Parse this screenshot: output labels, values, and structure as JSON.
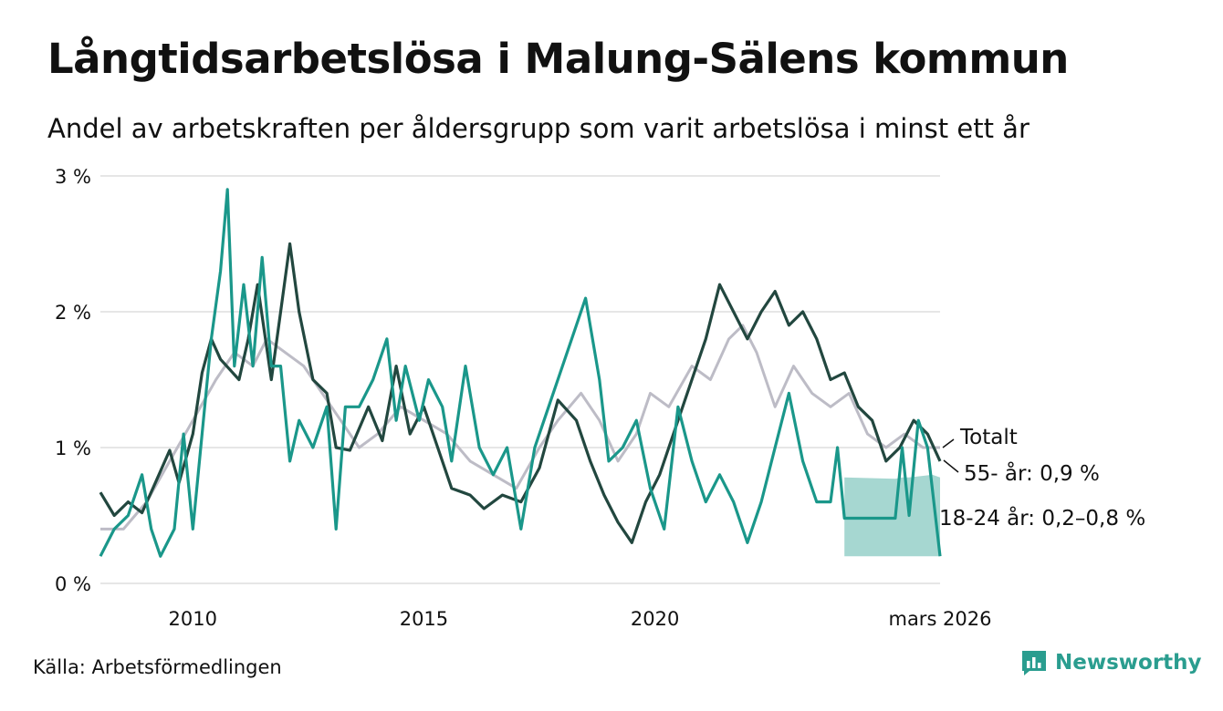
{
  "title": "Långtidsarbetslösa i Malung-Sälens kommun",
  "subtitle": "Andel av arbetskraften per åldersgrupp som varit arbetslösa i minst ett år",
  "source": "Källa: Arbetsförmedlingen",
  "brand": {
    "name": "Newsworthy",
    "logo_icon": "chart-bubble-icon"
  },
  "colors": {
    "total": "#bdbcc6",
    "age55": "#22473f",
    "age1824": "#1a978a",
    "band": "#a6d7d1",
    "grid": "#dddddd"
  },
  "chart_data": {
    "type": "line",
    "title": "Långtidsarbetslösa i Malung-Sälens kommun",
    "xlabel": "",
    "ylabel": "",
    "x_range": [
      2008.0,
      2026.17
    ],
    "ylim": [
      0,
      3
    ],
    "y_ticks": [
      0,
      1,
      2,
      3
    ],
    "y_tick_labels": [
      "0 %",
      "1 %",
      "2 %",
      "3 %"
    ],
    "x_ticks": [
      2010,
      2015,
      2020,
      2026.17
    ],
    "x_tick_labels": [
      "2010",
      "2015",
      "2020",
      "mars 2026"
    ],
    "grid": true,
    "series": [
      {
        "name": "Totalt",
        "label": "Totalt",
        "color": "#bdbcc6",
        "points": [
          [
            2008.0,
            0.4
          ],
          [
            2008.5,
            0.4
          ],
          [
            2009.0,
            0.6
          ],
          [
            2009.5,
            0.9
          ],
          [
            2010.0,
            1.2
          ],
          [
            2010.5,
            1.5
          ],
          [
            2010.9,
            1.7
          ],
          [
            2011.3,
            1.6
          ],
          [
            2011.6,
            1.8
          ],
          [
            2012.0,
            1.7
          ],
          [
            2012.4,
            1.6
          ],
          [
            2012.8,
            1.4
          ],
          [
            2013.2,
            1.2
          ],
          [
            2013.6,
            1.0
          ],
          [
            2014.0,
            1.1
          ],
          [
            2014.5,
            1.3
          ],
          [
            2015.0,
            1.2
          ],
          [
            2015.5,
            1.1
          ],
          [
            2016.0,
            0.9
          ],
          [
            2016.5,
            0.8
          ],
          [
            2017.0,
            0.7
          ],
          [
            2017.5,
            1.0
          ],
          [
            2017.9,
            1.2
          ],
          [
            2018.4,
            1.4
          ],
          [
            2018.8,
            1.2
          ],
          [
            2019.2,
            0.9
          ],
          [
            2019.6,
            1.1
          ],
          [
            2019.9,
            1.4
          ],
          [
            2020.3,
            1.3
          ],
          [
            2020.8,
            1.6
          ],
          [
            2021.2,
            1.5
          ],
          [
            2021.6,
            1.8
          ],
          [
            2021.9,
            1.9
          ],
          [
            2022.2,
            1.7
          ],
          [
            2022.6,
            1.3
          ],
          [
            2023.0,
            1.6
          ],
          [
            2023.4,
            1.4
          ],
          [
            2023.8,
            1.3
          ],
          [
            2024.2,
            1.4
          ],
          [
            2024.6,
            1.1
          ],
          [
            2025.0,
            1.0
          ],
          [
            2025.4,
            1.1
          ],
          [
            2025.8,
            1.0
          ],
          [
            2026.17,
            1.0
          ]
        ]
      },
      {
        "name": "55- år",
        "label": "55- år: 0,9 %",
        "color": "#22473f",
        "points": [
          [
            2008.0,
            0.67
          ],
          [
            2008.3,
            0.5
          ],
          [
            2008.6,
            0.6
          ],
          [
            2008.9,
            0.52
          ],
          [
            2009.2,
            0.75
          ],
          [
            2009.5,
            0.98
          ],
          [
            2009.7,
            0.74
          ],
          [
            2010.0,
            1.1
          ],
          [
            2010.2,
            1.55
          ],
          [
            2010.4,
            1.8
          ],
          [
            2010.6,
            1.65
          ],
          [
            2011.0,
            1.5
          ],
          [
            2011.2,
            1.8
          ],
          [
            2011.4,
            2.2
          ],
          [
            2011.7,
            1.5
          ],
          [
            2011.9,
            2.0
          ],
          [
            2012.1,
            2.5
          ],
          [
            2012.3,
            2.0
          ],
          [
            2012.6,
            1.5
          ],
          [
            2012.9,
            1.4
          ],
          [
            2013.1,
            1.0
          ],
          [
            2013.4,
            0.98
          ],
          [
            2013.8,
            1.3
          ],
          [
            2014.1,
            1.05
          ],
          [
            2014.4,
            1.6
          ],
          [
            2014.7,
            1.1
          ],
          [
            2015.0,
            1.3
          ],
          [
            2015.3,
            1.0
          ],
          [
            2015.6,
            0.7
          ],
          [
            2016.0,
            0.65
          ],
          [
            2016.3,
            0.55
          ],
          [
            2016.7,
            0.65
          ],
          [
            2017.1,
            0.6
          ],
          [
            2017.5,
            0.85
          ],
          [
            2017.9,
            1.35
          ],
          [
            2018.3,
            1.2
          ],
          [
            2018.6,
            0.9
          ],
          [
            2018.9,
            0.65
          ],
          [
            2019.2,
            0.45
          ],
          [
            2019.5,
            0.3
          ],
          [
            2019.8,
            0.6
          ],
          [
            2020.1,
            0.8
          ],
          [
            2020.5,
            1.2
          ],
          [
            2020.8,
            1.5
          ],
          [
            2021.1,
            1.8
          ],
          [
            2021.4,
            2.2
          ],
          [
            2021.7,
            2.0
          ],
          [
            2022.0,
            1.8
          ],
          [
            2022.3,
            2.0
          ],
          [
            2022.6,
            2.15
          ],
          [
            2022.9,
            1.9
          ],
          [
            2023.2,
            2.0
          ],
          [
            2023.5,
            1.8
          ],
          [
            2023.8,
            1.5
          ],
          [
            2024.1,
            1.55
          ],
          [
            2024.4,
            1.3
          ],
          [
            2024.7,
            1.2
          ],
          [
            2025.0,
            0.9
          ],
          [
            2025.3,
            1.0
          ],
          [
            2025.6,
            1.2
          ],
          [
            2025.9,
            1.1
          ],
          [
            2026.17,
            0.9
          ]
        ]
      },
      {
        "name": "18-24 år",
        "label": "18-24 år: 0,2–0,8 %",
        "color": "#1a978a",
        "points": [
          [
            2008.0,
            0.2
          ],
          [
            2008.3,
            0.4
          ],
          [
            2008.6,
            0.5
          ],
          [
            2008.9,
            0.8
          ],
          [
            2009.1,
            0.4
          ],
          [
            2009.3,
            0.2
          ],
          [
            2009.6,
            0.4
          ],
          [
            2009.8,
            1.1
          ],
          [
            2010.0,
            0.4
          ],
          [
            2010.2,
            1.1
          ],
          [
            2010.4,
            1.8
          ],
          [
            2010.6,
            2.3
          ],
          [
            2010.75,
            2.9
          ],
          [
            2010.9,
            1.6
          ],
          [
            2011.1,
            2.2
          ],
          [
            2011.3,
            1.6
          ],
          [
            2011.5,
            2.4
          ],
          [
            2011.7,
            1.6
          ],
          [
            2011.9,
            1.6
          ],
          [
            2012.1,
            0.9
          ],
          [
            2012.3,
            1.2
          ],
          [
            2012.6,
            1.0
          ],
          [
            2012.9,
            1.3
          ],
          [
            2013.1,
            0.4
          ],
          [
            2013.3,
            1.3
          ],
          [
            2013.6,
            1.3
          ],
          [
            2013.9,
            1.5
          ],
          [
            2014.2,
            1.8
          ],
          [
            2014.4,
            1.2
          ],
          [
            2014.6,
            1.6
          ],
          [
            2014.9,
            1.2
          ],
          [
            2015.1,
            1.5
          ],
          [
            2015.4,
            1.3
          ],
          [
            2015.6,
            0.9
          ],
          [
            2015.9,
            1.6
          ],
          [
            2016.2,
            1.0
          ],
          [
            2016.5,
            0.8
          ],
          [
            2016.8,
            1.0
          ],
          [
            2017.1,
            0.4
          ],
          [
            2017.4,
            1.0
          ],
          [
            2017.7,
            1.3
          ],
          [
            2018.0,
            1.6
          ],
          [
            2018.3,
            1.9
          ],
          [
            2018.5,
            2.1
          ],
          [
            2018.8,
            1.5
          ],
          [
            2019.0,
            0.9
          ],
          [
            2019.3,
            1.0
          ],
          [
            2019.6,
            1.2
          ],
          [
            2019.9,
            0.7
          ],
          [
            2020.2,
            0.4
          ],
          [
            2020.5,
            1.3
          ],
          [
            2020.8,
            0.9
          ],
          [
            2021.1,
            0.6
          ],
          [
            2021.4,
            0.8
          ],
          [
            2021.7,
            0.6
          ],
          [
            2022.0,
            0.3
          ],
          [
            2022.3,
            0.6
          ],
          [
            2022.6,
            1.0
          ],
          [
            2022.9,
            1.4
          ],
          [
            2023.2,
            0.9
          ],
          [
            2023.5,
            0.6
          ],
          [
            2023.8,
            0.6
          ],
          [
            2023.95,
            1.0
          ],
          [
            2024.1,
            0.48
          ],
          [
            2025.2,
            0.48
          ],
          [
            2025.35,
            1.0
          ],
          [
            2025.5,
            0.5
          ],
          [
            2025.7,
            1.2
          ],
          [
            2025.9,
            1.0
          ],
          [
            2026.17,
            0.2
          ]
        ]
      }
    ],
    "band": {
      "name": "18-24 år intervall",
      "points": [
        [
          2024.1,
          0.2,
          0.78
        ],
        [
          2025.2,
          0.2,
          0.77
        ],
        [
          2025.35,
          0.2,
          0.78
        ],
        [
          2025.45,
          0.2,
          0.78
        ],
        [
          2025.5,
          0.2,
          0.78
        ],
        [
          2026.0,
          0.2,
          0.8
        ],
        [
          2026.17,
          0.2,
          0.78
        ]
      ]
    }
  }
}
